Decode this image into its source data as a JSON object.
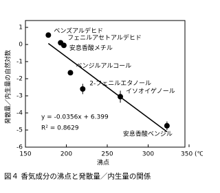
{
  "chart_data": {
    "type": "scatter",
    "y_label": "発散量／内生量の自然対数",
    "x_label": "沸点",
    "caption": "図４ 香気成分の沸点と発散量／内生量の関係",
    "x": [
      178,
      193,
      197,
      205,
      220,
      266,
      323
    ],
    "values": [
      0.55,
      0.1,
      -0.05,
      -1.65,
      -2.6,
      -3.05,
      -4.75
    ],
    "errors": [
      0.15,
      0.1,
      0.1,
      0.1,
      0.3,
      0.35,
      0.25
    ],
    "point_labels": [
      "ベンズアルデヒド",
      "フェニルアセトアルデヒド",
      "安息香酸メチル",
      "ベンジルアルコール",
      "2-フェニルエタノール",
      "イソオイゲノール",
      "安息香酸ベンジル"
    ],
    "color": "#000000",
    "fit_line": {
      "x": [
        178,
        323
      ],
      "values": [
        0.06,
        -5.1
      ]
    },
    "equation": "y = -0.0356x + 6.399",
    "r_squared": "R² = 0.8629",
    "xlim": [
      150,
      350
    ],
    "ylim": [
      -6,
      1
    ],
    "xticks": [
      150,
      200,
      250,
      300,
      {
        "value": 350,
        "label": "350 (℃)"
      }
    ],
    "yticks": [
      1,
      0,
      -1,
      -2,
      -3,
      -4,
      -5,
      -6
    ]
  }
}
